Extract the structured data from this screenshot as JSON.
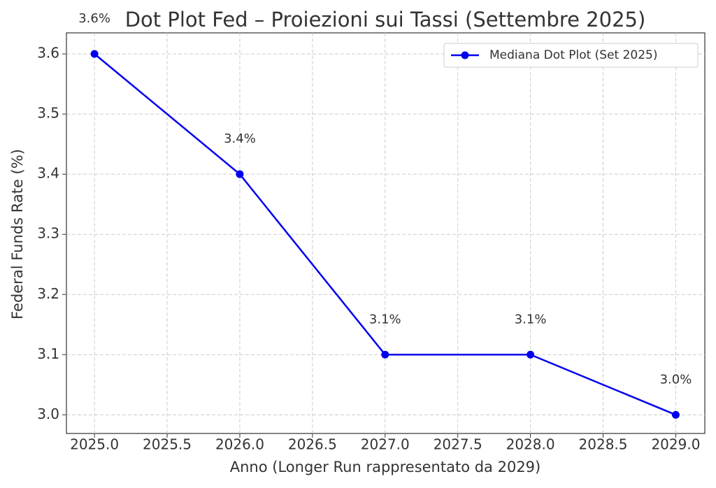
{
  "chart_data": {
    "type": "line",
    "title": "Dot Plot Fed – Proiezioni sui Tassi (Settembre 2025)",
    "x_label": "Anno (Longer Run rappresentato da 2029)",
    "y_label": "Federal Funds Rate (%)",
    "x": [
      2025,
      2026,
      2027,
      2028,
      2029
    ],
    "series": [
      {
        "name": "Mediana Dot Plot (Set 2025)",
        "color": "#0000ee",
        "values": [
          3.6,
          3.4,
          3.1,
          3.1,
          3.0
        ],
        "value_labels": [
          "3.6%",
          "3.4%",
          "3.1%",
          "3.1%",
          "3.0%"
        ]
      }
    ],
    "xlim": [
      2024.807,
      2029.2
    ],
    "xticks": [
      {
        "value": 2025,
        "label": "2025.0"
      },
      {
        "value": 2025.5,
        "label": "2025.5"
      },
      {
        "value": 2026,
        "label": "2026.0"
      },
      {
        "value": 2026.5,
        "label": "2026.5"
      },
      {
        "value": 2027,
        "label": "2027.0"
      },
      {
        "value": 2027.5,
        "label": "2027.5"
      },
      {
        "value": 2028,
        "label": "2028.0"
      },
      {
        "value": 2028.5,
        "label": "2028.5"
      },
      {
        "value": 2029,
        "label": "2029.0"
      }
    ],
    "ylim": [
      2.969,
      3.635
    ],
    "yticks": [
      {
        "value": 3,
        "label": "3.0"
      },
      3.1,
      3.2,
      3.3,
      3.4,
      3.5,
      3.6
    ],
    "grid": true,
    "legend": "upper right"
  }
}
